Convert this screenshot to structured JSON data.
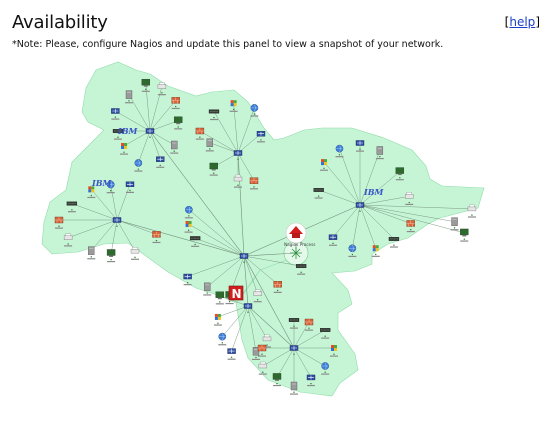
{
  "panel": {
    "title": "Availability",
    "help_label": "help",
    "note": "*Note: Please, configure Nagios and update this panel to view a snapshot of your network."
  },
  "map": {
    "center_label": "Nagios Process",
    "brand_letter": "N",
    "vendor_labels": [
      "IBM",
      "IBM",
      "IBM"
    ],
    "colors": {
      "zone_fill": "#c6f5d6",
      "zone_stroke": "#8fdca8",
      "link": "#6f8f78",
      "host_up": "#2a7a2a",
      "router": "#20408f",
      "nagios_red": "#d21e1e"
    },
    "icons": [
      "router-icon",
      "server-icon",
      "workstation-icon",
      "printer-icon",
      "firewall-icon",
      "switch-icon",
      "windows-icon",
      "globe-icon",
      "nagios-icon"
    ]
  }
}
